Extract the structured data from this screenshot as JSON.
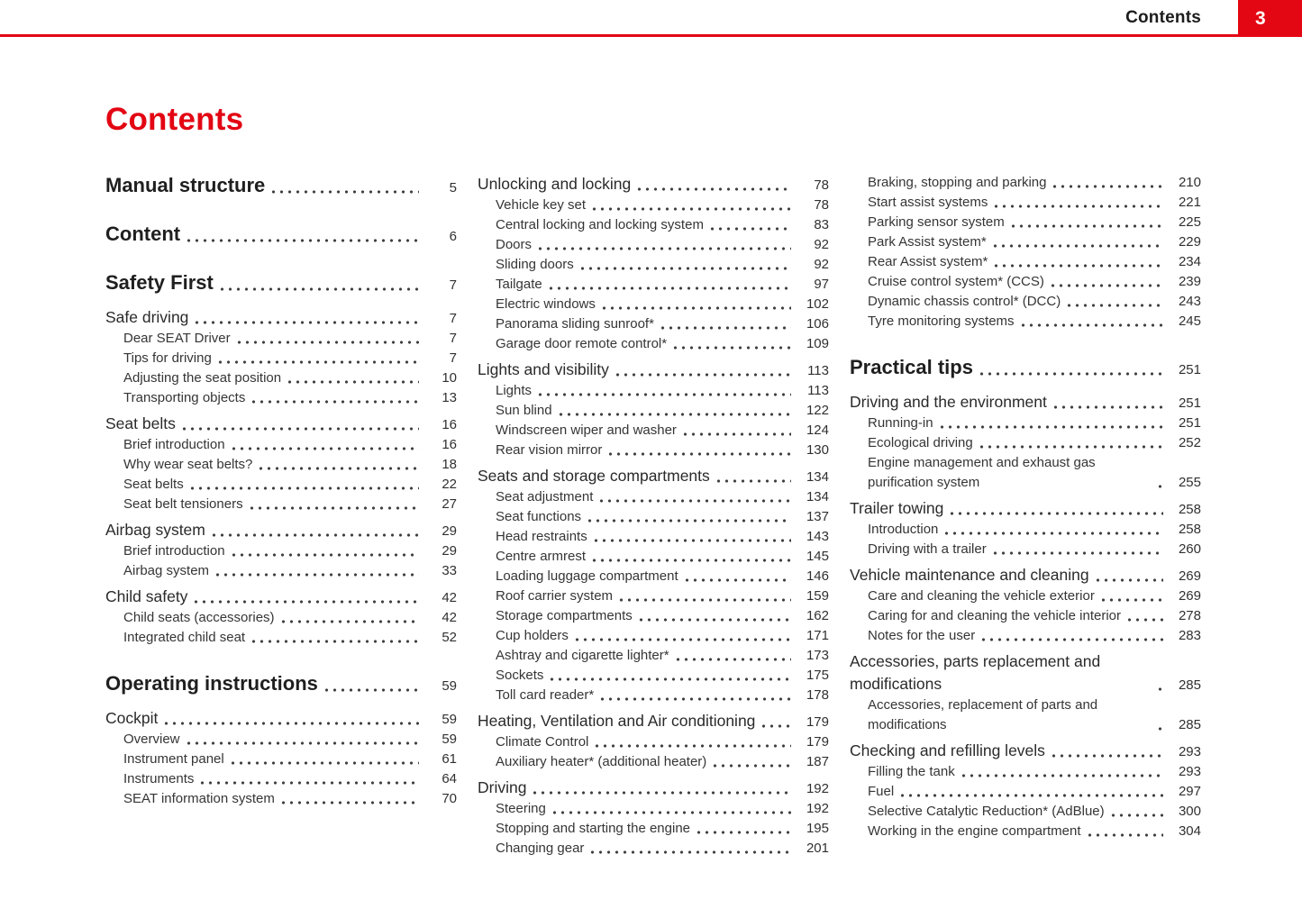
{
  "header": {
    "title": "Contents",
    "page_number": "3"
  },
  "title": "Contents",
  "colors": {
    "accent_red": "#e30613",
    "text": "#242424"
  },
  "columns": [
    {
      "entries": [
        {
          "level": "chapter",
          "label": "Manual structure",
          "page": "5"
        },
        {
          "level": "chapter",
          "label": "Content",
          "page": "6"
        },
        {
          "level": "chapter",
          "label": "Safety First",
          "page": "7"
        },
        {
          "level": "section",
          "label": "Safe driving",
          "page": "7"
        },
        {
          "level": "sub",
          "label": "Dear SEAT Driver",
          "page": "7"
        },
        {
          "level": "sub",
          "label": "Tips for driving",
          "page": "7"
        },
        {
          "level": "sub",
          "label": "Adjusting the seat position",
          "page": "10"
        },
        {
          "level": "sub",
          "label": "Transporting objects",
          "page": "13"
        },
        {
          "level": "section",
          "label": "Seat belts",
          "page": "16"
        },
        {
          "level": "sub",
          "label": "Brief introduction",
          "page": "16"
        },
        {
          "level": "sub",
          "label": "Why wear seat belts?",
          "page": "18"
        },
        {
          "level": "sub",
          "label": "Seat belts",
          "page": "22"
        },
        {
          "level": "sub",
          "label": "Seat belt tensioners",
          "page": "27"
        },
        {
          "level": "section",
          "label": "Airbag system",
          "page": "29"
        },
        {
          "level": "sub",
          "label": "Brief introduction",
          "page": "29"
        },
        {
          "level": "sub",
          "label": "Airbag system",
          "page": "33"
        },
        {
          "level": "section",
          "label": "Child safety",
          "page": "42"
        },
        {
          "level": "sub",
          "label": "Child seats (accessories)",
          "page": "42"
        },
        {
          "level": "sub",
          "label": "Integrated child seat",
          "page": "52"
        },
        {
          "level": "chapter",
          "label": "Operating instructions",
          "page": "59"
        },
        {
          "level": "section",
          "label": "Cockpit",
          "page": "59"
        },
        {
          "level": "sub",
          "label": "Overview",
          "page": "59"
        },
        {
          "level": "sub",
          "label": "Instrument panel",
          "page": "61"
        },
        {
          "level": "sub",
          "label": "Instruments",
          "page": "64"
        },
        {
          "level": "sub",
          "label": "SEAT information system",
          "page": "70"
        }
      ]
    },
    {
      "entries": [
        {
          "level": "section",
          "label": "Unlocking and locking",
          "page": "78"
        },
        {
          "level": "sub",
          "label": "Vehicle key set",
          "page": "78"
        },
        {
          "level": "sub",
          "label": "Central locking and locking system",
          "page": "83"
        },
        {
          "level": "sub",
          "label": "Doors",
          "page": "92"
        },
        {
          "level": "sub",
          "label": "Sliding doors",
          "page": "92"
        },
        {
          "level": "sub",
          "label": "Tailgate",
          "page": "97"
        },
        {
          "level": "sub",
          "label": "Electric windows",
          "page": "102"
        },
        {
          "level": "sub",
          "label": "Panorama sliding sunroof*",
          "page": "106"
        },
        {
          "level": "sub",
          "label": "Garage door remote control*",
          "page": "109"
        },
        {
          "level": "section",
          "label": "Lights and visibility",
          "page": "113"
        },
        {
          "level": "sub",
          "label": "Lights",
          "page": "113"
        },
        {
          "level": "sub",
          "label": "Sun blind",
          "page": "122"
        },
        {
          "level": "sub",
          "label": "Windscreen wiper and washer",
          "page": "124"
        },
        {
          "level": "sub",
          "label": "Rear vision mirror",
          "page": "130"
        },
        {
          "level": "section",
          "label": "Seats and storage compartments",
          "page": "134"
        },
        {
          "level": "sub",
          "label": "Seat adjustment",
          "page": "134"
        },
        {
          "level": "sub",
          "label": "Seat functions",
          "page": "137"
        },
        {
          "level": "sub",
          "label": "Head restraints",
          "page": "143"
        },
        {
          "level": "sub",
          "label": "Centre armrest",
          "page": "145"
        },
        {
          "level": "sub",
          "label": "Loading luggage compartment",
          "page": "146"
        },
        {
          "level": "sub",
          "label": "Roof carrier system",
          "page": "159"
        },
        {
          "level": "sub",
          "label": "Storage compartments",
          "page": "162"
        },
        {
          "level": "sub",
          "label": "Cup holders",
          "page": "171"
        },
        {
          "level": "sub",
          "label": "Ashtray and cigarette lighter*",
          "page": "173"
        },
        {
          "level": "sub",
          "label": "Sockets",
          "page": "175"
        },
        {
          "level": "sub",
          "label": "Toll card reader*",
          "page": "178"
        },
        {
          "level": "section",
          "label": "Heating, Ventilation and Air conditioning",
          "page": "179"
        },
        {
          "level": "sub",
          "label": "Climate Control",
          "page": "179"
        },
        {
          "level": "sub",
          "label": "Auxiliary heater* (additional heater)",
          "page": "187"
        },
        {
          "level": "section",
          "label": "Driving",
          "page": "192"
        },
        {
          "level": "sub",
          "label": "Steering",
          "page": "192"
        },
        {
          "level": "sub",
          "label": "Stopping and starting the engine",
          "page": "195"
        },
        {
          "level": "sub",
          "label": "Changing gear",
          "page": "201"
        }
      ]
    },
    {
      "entries": [
        {
          "level": "sub",
          "label": "Braking, stopping and parking",
          "page": "210"
        },
        {
          "level": "sub",
          "label": "Start assist systems",
          "page": "221"
        },
        {
          "level": "sub",
          "label": "Parking sensor system",
          "page": "225"
        },
        {
          "level": "sub",
          "label": "Park Assist system*",
          "page": "229"
        },
        {
          "level": "sub",
          "label": "Rear Assist system*",
          "page": "234"
        },
        {
          "level": "sub",
          "label": "Cruise control system* (CCS)",
          "page": "239"
        },
        {
          "level": "sub",
          "label": "Dynamic chassis control* (DCC)",
          "page": "243"
        },
        {
          "level": "sub",
          "label": "Tyre monitoring systems",
          "page": "245"
        },
        {
          "level": "chapter",
          "label": "Practical tips",
          "page": "251"
        },
        {
          "level": "section",
          "label": "Driving and the environment",
          "page": "251"
        },
        {
          "level": "sub",
          "label": "Running-in",
          "page": "251"
        },
        {
          "level": "sub",
          "label": "Ecological driving",
          "page": "252"
        },
        {
          "level": "sub",
          "label": "Engine management and exhaust gas purification system",
          "page": "255"
        },
        {
          "level": "section",
          "label": "Trailer towing",
          "page": "258"
        },
        {
          "level": "sub",
          "label": "Introduction",
          "page": "258"
        },
        {
          "level": "sub",
          "label": "Driving with a trailer",
          "page": "260"
        },
        {
          "level": "section",
          "label": "Vehicle maintenance and cleaning",
          "page": "269"
        },
        {
          "level": "sub",
          "label": "Care and cleaning the vehicle exterior",
          "page": "269"
        },
        {
          "level": "sub",
          "label": "Caring for and cleaning the vehicle interior",
          "page": "278"
        },
        {
          "level": "sub",
          "label": "Notes for the user",
          "page": "283"
        },
        {
          "level": "section",
          "label": "Accessories, parts replacement and modifications",
          "page": "285"
        },
        {
          "level": "sub",
          "label": "Accessories, replacement of parts and modifications",
          "page": "285"
        },
        {
          "level": "section",
          "label": "Checking and refilling levels",
          "page": "293"
        },
        {
          "level": "sub",
          "label": "Filling the tank",
          "page": "293"
        },
        {
          "level": "sub",
          "label": "Fuel",
          "page": "297"
        },
        {
          "level": "sub",
          "label": "Selective Catalytic Reduction* (AdBlue)",
          "page": "300"
        },
        {
          "level": "sub",
          "label": "Working in the engine compartment",
          "page": "304"
        }
      ]
    }
  ]
}
